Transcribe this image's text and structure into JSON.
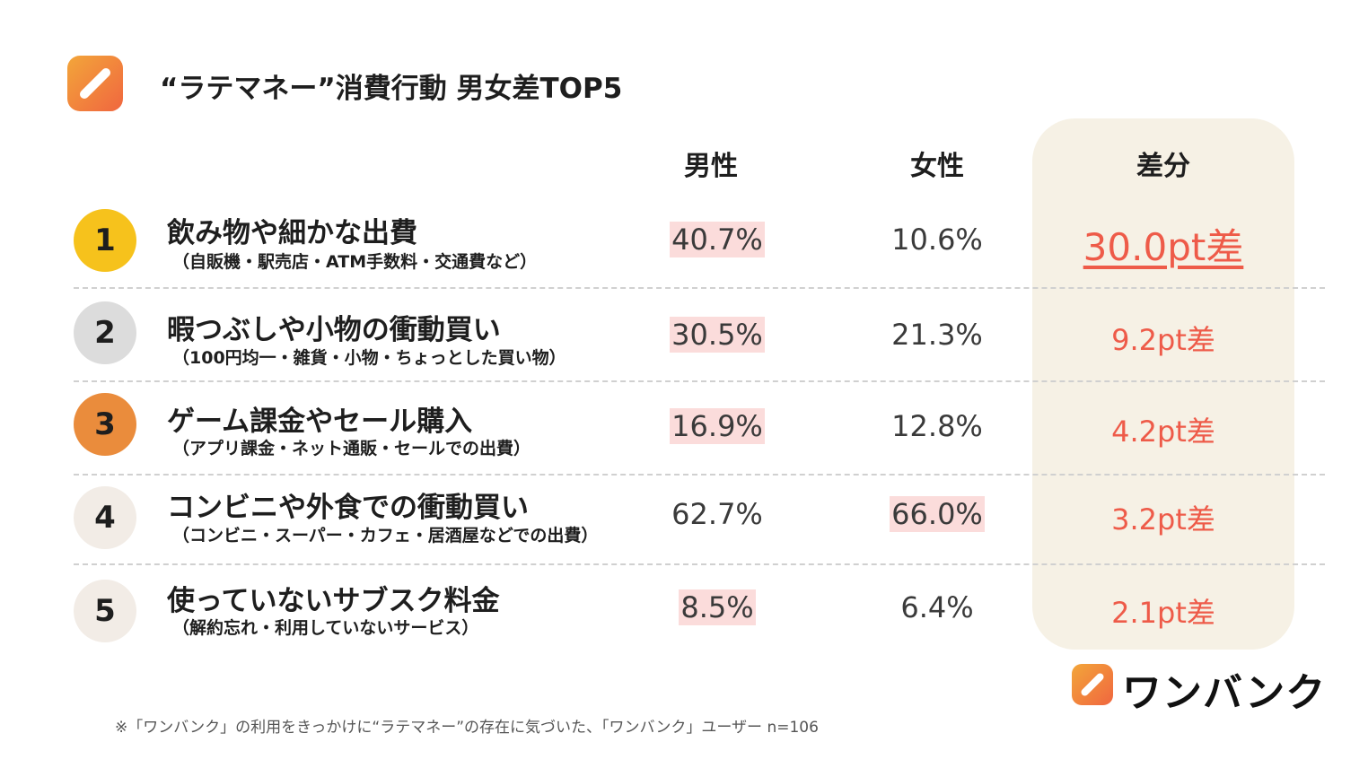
{
  "header": {
    "title": "“ラテマネー”消費行動 男女差TOP5"
  },
  "columns": {
    "male": "男性",
    "female": "女性",
    "diff": "差分"
  },
  "rows": [
    {
      "rank": "1",
      "title": "飲み物や細かな出費",
      "sub": "（自販機・駅売店・ATM手数料・交通費など）",
      "male": "40.7%",
      "female": "10.6%",
      "diff": "30.0pt差",
      "highlight": "male",
      "badge_color": "#f6c21c"
    },
    {
      "rank": "2",
      "title": "暇つぶしや小物の衝動買い",
      "sub": "（100円均一・雑貨・小物・ちょっとした買い物）",
      "male": "30.5%",
      "female": "21.3%",
      "diff": "9.2pt差",
      "highlight": "male",
      "badge_color": "#dcdcdc"
    },
    {
      "rank": "3",
      "title": "ゲーム課金やセール購入",
      "sub": "（アプリ課金・ネット通販・セールでの出費）",
      "male": "16.9%",
      "female": "12.8%",
      "diff": "4.2pt差",
      "highlight": "male",
      "badge_color": "#ea8c3c"
    },
    {
      "rank": "4",
      "title": "コンビニや外食での衝動買い",
      "sub": "（コンビニ・スーパー・カフェ・居酒屋などでの出費）",
      "male": "62.7%",
      "female": "66.0%",
      "diff": "3.2pt差",
      "highlight": "female",
      "badge_color": "#f2ece6"
    },
    {
      "rank": "5",
      "title": "使っていないサブスク料金",
      "sub": "（解約忘れ・利用していないサービス）",
      "male": "8.5%",
      "female": "6.4%",
      "diff": "2.1pt差",
      "highlight": "male",
      "badge_color": "#f2ece6"
    }
  ],
  "brand": {
    "name": "ワンバンク"
  },
  "footnote": "※「ワンバンク」の利用をきっかけに“ラテマネー”の存在に気づいた、「ワンバンク」ユーザー n=106",
  "colors": {
    "accent": "#ee5b49",
    "highlight": "#fbdcdb",
    "diff_panel": "#f6f1e5"
  },
  "icons": {
    "logo": "wanbank-logo-icon"
  }
}
